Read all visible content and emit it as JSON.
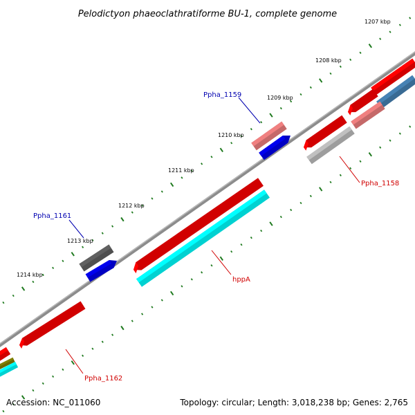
{
  "title": "Pelodictyon phaeoclathratiforme BU-1, complete genome",
  "footer": {
    "accession": "Accession: NC_011060",
    "summary": "Topology: circular; Length: 3,018,238 bp; Genes: 2,765"
  },
  "ticks": [
    {
      "kbp": 1207,
      "label": "1207 kbp"
    },
    {
      "kbp": 1208,
      "label": "1208 kbp"
    },
    {
      "kbp": 1209,
      "label": "1209 kbp"
    },
    {
      "kbp": 1210,
      "label": "1210 kbp"
    },
    {
      "kbp": 1211,
      "label": "1211 kbp"
    },
    {
      "kbp": 1212,
      "label": "1212 kbp"
    },
    {
      "kbp": 1213,
      "label": "1213 kbp"
    },
    {
      "kbp": 1214,
      "label": "1214 kbp"
    }
  ],
  "gene_labels": [
    {
      "text": "Ppha_1159",
      "color": "#0000b0"
    },
    {
      "text": "Ppha_1158",
      "color": "#d00000"
    },
    {
      "text": "Ppha_1161",
      "color": "#0000b0"
    },
    {
      "text": "hppA",
      "color": "#d00000"
    },
    {
      "text": "Ppha_1162",
      "color": "#d00000"
    }
  ],
  "colors": {
    "backbone": "#808080",
    "tick": "#1f7a1f",
    "cds_red": "#ff0000",
    "cds_pink": "#f08080",
    "cds_gray": "#c0c0c0",
    "cds_darkgray": "#606060",
    "cds_blue": "#0000ee",
    "cds_cyan": "#00ffff",
    "cds_steelblue": "#4682b4",
    "cds_olive": "#808000"
  }
}
